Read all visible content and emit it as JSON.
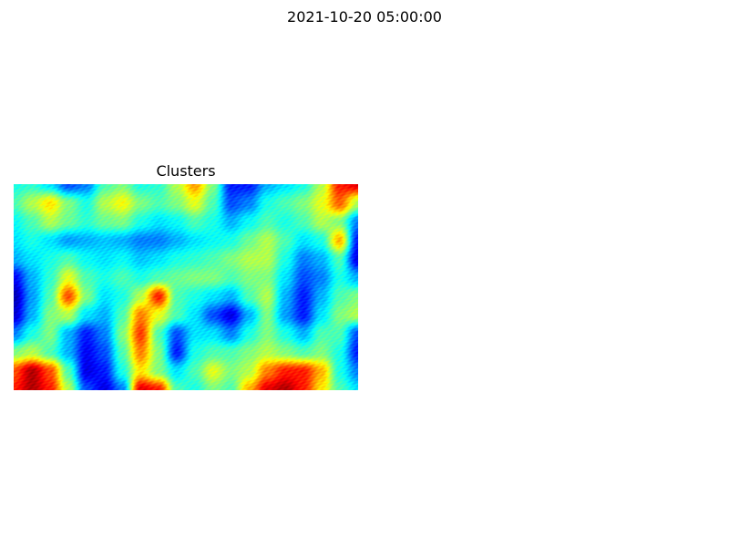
{
  "figure": {
    "suptitle": "2021-10-20 05:00:00"
  },
  "chart_data": {
    "type": "heatmap",
    "title": "Clusters",
    "colormap": "jet",
    "axes_visible": false,
    "value_range": [
      0,
      1
    ],
    "grid_rows": 12,
    "grid_cols": 20,
    "values": [
      [
        0.4,
        0.42,
        0.35,
        0.2,
        0.25,
        0.45,
        0.5,
        0.4,
        0.42,
        0.55,
        0.72,
        0.5,
        0.15,
        0.15,
        0.3,
        0.35,
        0.4,
        0.55,
        0.85,
        0.9
      ],
      [
        0.45,
        0.55,
        0.65,
        0.5,
        0.4,
        0.55,
        0.62,
        0.5,
        0.45,
        0.5,
        0.6,
        0.45,
        0.2,
        0.25,
        0.4,
        0.45,
        0.5,
        0.6,
        0.78,
        0.55
      ],
      [
        0.38,
        0.45,
        0.55,
        0.48,
        0.42,
        0.48,
        0.5,
        0.4,
        0.35,
        0.38,
        0.45,
        0.4,
        0.3,
        0.38,
        0.45,
        0.4,
        0.45,
        0.55,
        0.5,
        0.25
      ],
      [
        0.35,
        0.4,
        0.35,
        0.28,
        0.3,
        0.32,
        0.3,
        0.25,
        0.25,
        0.3,
        0.35,
        0.38,
        0.4,
        0.48,
        0.55,
        0.45,
        0.35,
        0.4,
        0.7,
        0.15
      ],
      [
        0.3,
        0.35,
        0.4,
        0.45,
        0.38,
        0.35,
        0.38,
        0.32,
        0.35,
        0.4,
        0.42,
        0.45,
        0.5,
        0.55,
        0.55,
        0.4,
        0.25,
        0.3,
        0.45,
        0.1
      ],
      [
        0.12,
        0.3,
        0.42,
        0.6,
        0.45,
        0.4,
        0.45,
        0.4,
        0.45,
        0.48,
        0.5,
        0.5,
        0.45,
        0.5,
        0.5,
        0.35,
        0.2,
        0.25,
        0.4,
        0.3
      ],
      [
        0.05,
        0.28,
        0.45,
        0.8,
        0.5,
        0.35,
        0.4,
        0.55,
        0.85,
        0.45,
        0.4,
        0.35,
        0.3,
        0.45,
        0.55,
        0.3,
        0.15,
        0.3,
        0.45,
        0.5
      ],
      [
        0.08,
        0.3,
        0.5,
        0.55,
        0.35,
        0.3,
        0.45,
        0.75,
        0.6,
        0.45,
        0.35,
        0.2,
        0.1,
        0.3,
        0.5,
        0.28,
        0.15,
        0.35,
        0.5,
        0.55
      ],
      [
        0.25,
        0.4,
        0.5,
        0.3,
        0.15,
        0.25,
        0.5,
        0.82,
        0.45,
        0.2,
        0.35,
        0.35,
        0.25,
        0.4,
        0.5,
        0.4,
        0.3,
        0.45,
        0.45,
        0.2
      ],
      [
        0.5,
        0.55,
        0.45,
        0.3,
        0.12,
        0.2,
        0.45,
        0.75,
        0.5,
        0.15,
        0.4,
        0.45,
        0.45,
        0.5,
        0.55,
        0.5,
        0.45,
        0.5,
        0.4,
        0.15
      ],
      [
        0.8,
        0.95,
        0.8,
        0.45,
        0.1,
        0.15,
        0.4,
        0.65,
        0.5,
        0.35,
        0.45,
        0.6,
        0.5,
        0.55,
        0.75,
        0.85,
        0.85,
        0.7,
        0.4,
        0.25
      ],
      [
        0.85,
        0.95,
        0.85,
        0.55,
        0.2,
        0.1,
        0.25,
        0.9,
        0.85,
        0.45,
        0.4,
        0.5,
        0.45,
        0.7,
        0.9,
        0.95,
        0.85,
        0.65,
        0.45,
        0.35
      ]
    ]
  }
}
